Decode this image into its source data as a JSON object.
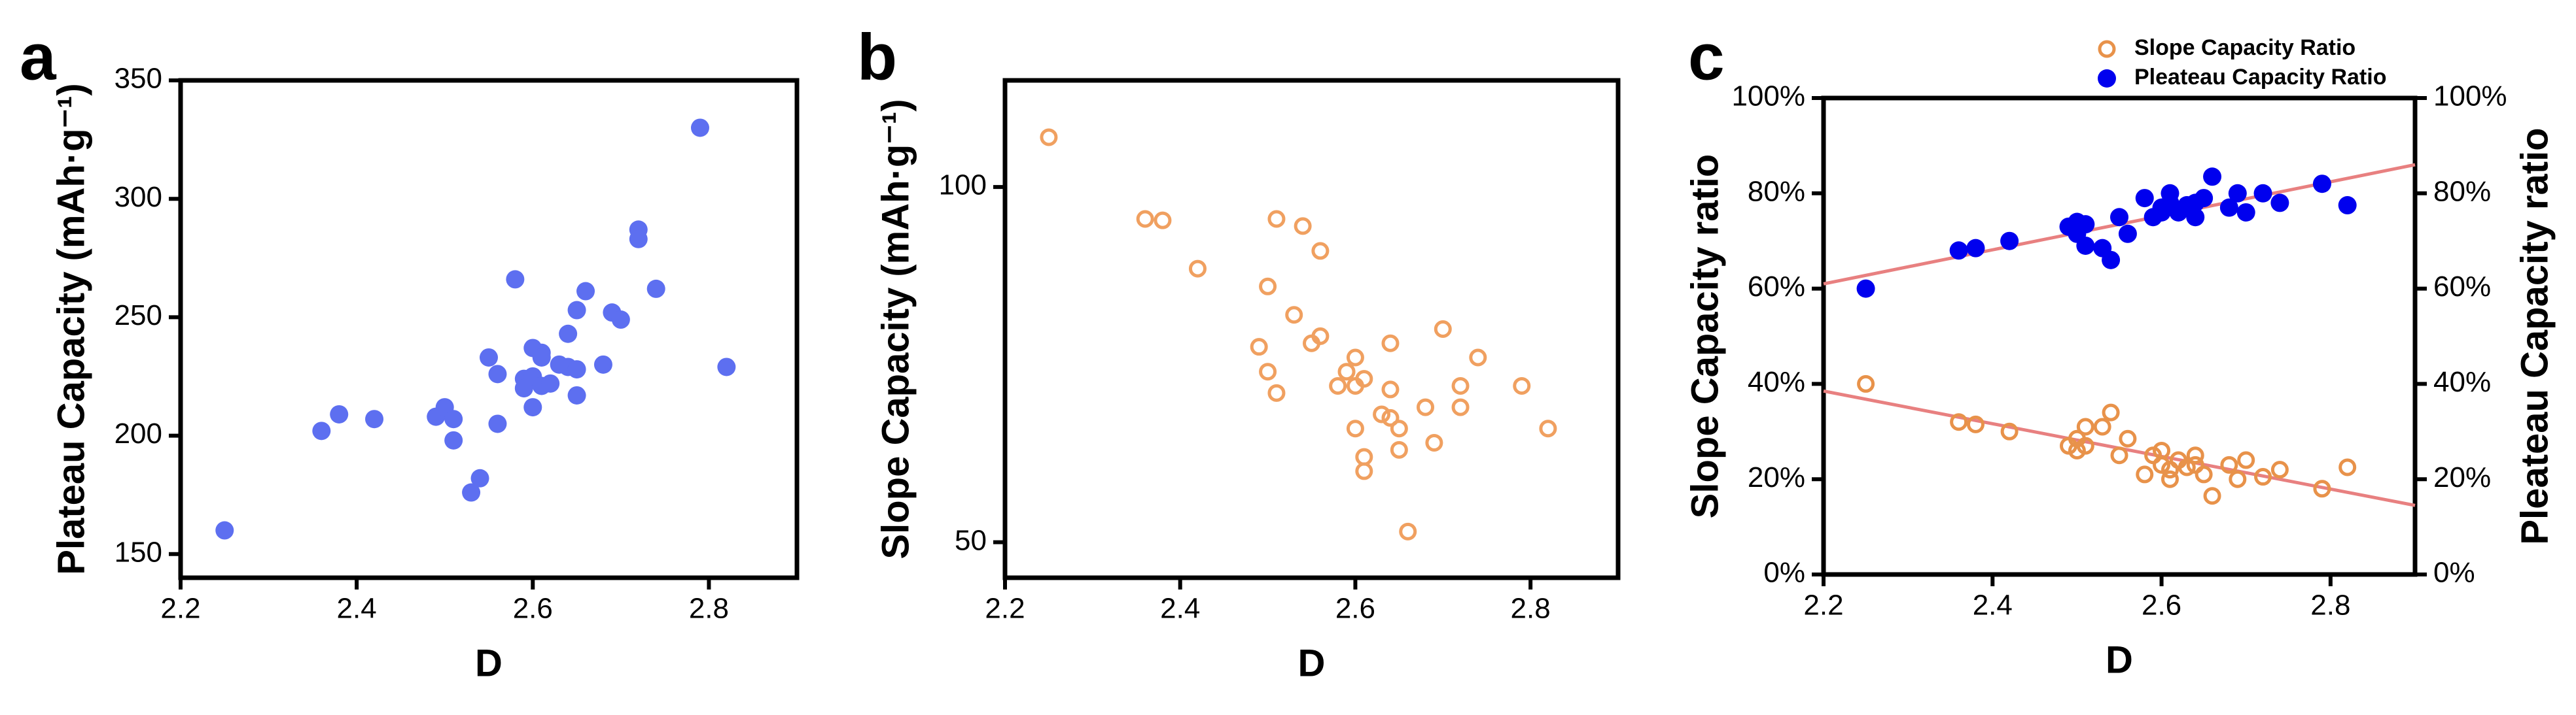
{
  "chart_data": [
    {
      "type": "scatter",
      "panel_label": "a",
      "x_label": "D",
      "y_label": "Plateau Capacity (mAh·g⁻¹)",
      "xlim": [
        2.2,
        2.9
      ],
      "xticks": [
        2.2,
        2.4,
        2.6,
        2.8
      ],
      "ylim": [
        140,
        350
      ],
      "yticks": [
        150,
        200,
        250,
        300,
        350
      ],
      "series": [
        {
          "color": "#5d6ff0",
          "marker": "filled",
          "x": [
            2.25,
            2.36,
            2.38,
            2.42,
            2.49,
            2.5,
            2.51,
            2.51,
            2.53,
            2.54,
            2.55,
            2.56,
            2.56,
            2.58,
            2.59,
            2.59,
            2.6,
            2.6,
            2.6,
            2.61,
            2.61,
            2.61,
            2.62,
            2.63,
            2.64,
            2.64,
            2.65,
            2.65,
            2.65,
            2.66,
            2.68,
            2.69,
            2.7,
            2.72,
            2.72,
            2.74,
            2.79,
            2.82
          ],
          "values": [
            160,
            202,
            209,
            207,
            208,
            212,
            207,
            198,
            176,
            182,
            233,
            226,
            205,
            266,
            224,
            220,
            237,
            225,
            212,
            235,
            233,
            221,
            222,
            230,
            243,
            229,
            253,
            228,
            217,
            261,
            230,
            252,
            249,
            287,
            283,
            262,
            330,
            229
          ]
        }
      ]
    },
    {
      "type": "scatter",
      "panel_label": "b",
      "x_label": "D",
      "y_label": "Slope Capacity (mAh·g⁻¹)",
      "xlim": [
        2.2,
        2.9
      ],
      "xticks": [
        2.2,
        2.4,
        2.6,
        2.8
      ],
      "ylim": [
        45,
        115
      ],
      "yticks": [
        50,
        100
      ],
      "series": [
        {
          "color": "#f0a060",
          "marker": "open",
          "x": [
            2.25,
            2.36,
            2.38,
            2.42,
            2.49,
            2.5,
            2.5,
            2.51,
            2.51,
            2.53,
            2.54,
            2.55,
            2.56,
            2.56,
            2.58,
            2.59,
            2.6,
            2.6,
            2.6,
            2.61,
            2.61,
            2.61,
            2.63,
            2.64,
            2.64,
            2.64,
            2.65,
            2.65,
            2.66,
            2.68,
            2.69,
            2.7,
            2.72,
            2.72,
            2.74,
            2.79,
            2.82
          ],
          "values": [
            107,
            95.5,
            95.3,
            88.5,
            77.5,
            86,
            74,
            95.5,
            71,
            82,
            94.5,
            78,
            91,
            79,
            72,
            74,
            76,
            72,
            66,
            73,
            62,
            60,
            68,
            78,
            71.5,
            67.5,
            66,
            63,
            51.5,
            69,
            64,
            80,
            72,
            69,
            76,
            72,
            66
          ]
        }
      ]
    },
    {
      "type": "scatter",
      "panel_label": "c",
      "x_label": "D",
      "y_label": "Slope Capacity ratio",
      "y2_label": "Pleateau Capacity ratio",
      "xlim": [
        2.2,
        2.9
      ],
      "xticks": [
        2.2,
        2.4,
        2.6,
        2.8
      ],
      "ylim": [
        0,
        100
      ],
      "yticks": [
        {
          "value": 0,
          "label": "0%"
        },
        {
          "value": 20,
          "label": "20%"
        },
        {
          "value": 40,
          "label": "40%"
        },
        {
          "value": 60,
          "label": "60%"
        },
        {
          "value": 80,
          "label": "80%"
        },
        {
          "value": 100,
          "label": "100%"
        }
      ],
      "y2lim": [
        0,
        100
      ],
      "y2ticks": [
        {
          "value": 0,
          "label": "0%"
        },
        {
          "value": 20,
          "label": "20%"
        },
        {
          "value": 40,
          "label": "40%"
        },
        {
          "value": 60,
          "label": "60%"
        },
        {
          "value": 80,
          "label": "80%"
        },
        {
          "value": 100,
          "label": "100%"
        }
      ],
      "series": [
        {
          "name": "Slope Capacity Ratio",
          "color": "#e8924a",
          "marker": "open",
          "x": [
            2.25,
            2.36,
            2.38,
            2.42,
            2.49,
            2.5,
            2.51,
            2.51,
            2.5,
            2.53,
            2.54,
            2.55,
            2.56,
            2.58,
            2.59,
            2.6,
            2.6,
            2.61,
            2.61,
            2.62,
            2.63,
            2.64,
            2.64,
            2.65,
            2.66,
            2.68,
            2.69,
            2.7,
            2.72,
            2.74,
            2.79,
            2.82
          ],
          "values": [
            40,
            32,
            31.5,
            30,
            27,
            26,
            31,
            27,
            28.5,
            31,
            34,
            25,
            28.5,
            21,
            25,
            26,
            23,
            22,
            20,
            24,
            22.5,
            25,
            23,
            21,
            16.5,
            23,
            20,
            24,
            20.5,
            22,
            18,
            22.5
          ]
        },
        {
          "name": "Pleateau Capacity Ratio",
          "color": "#0000ee",
          "marker": "filled",
          "axis": "y2",
          "x": [
            2.25,
            2.36,
            2.38,
            2.42,
            2.49,
            2.5,
            2.51,
            2.5,
            2.51,
            2.53,
            2.54,
            2.55,
            2.56,
            2.58,
            2.59,
            2.6,
            2.6,
            2.61,
            2.61,
            2.62,
            2.63,
            2.64,
            2.64,
            2.65,
            2.66,
            2.68,
            2.69,
            2.7,
            2.72,
            2.74,
            2.79,
            2.82
          ],
          "values": [
            60,
            68,
            68.5,
            70,
            73,
            74,
            73.5,
            71.5,
            69,
            68.5,
            66,
            75,
            71.5,
            79,
            75,
            76,
            77,
            78,
            80,
            76,
            77.5,
            75,
            78,
            79,
            83.5,
            77,
            80,
            76,
            80,
            78,
            82,
            77.5
          ]
        }
      ],
      "trend_lines": [
        {
          "color": "#e88080",
          "x": [
            2.2,
            2.9
          ],
          "values": [
            38.5,
            14.5
          ]
        },
        {
          "color": "#e88080",
          "axis": "y2",
          "x": [
            2.2,
            2.9
          ],
          "values": [
            61,
            86
          ]
        }
      ]
    }
  ]
}
